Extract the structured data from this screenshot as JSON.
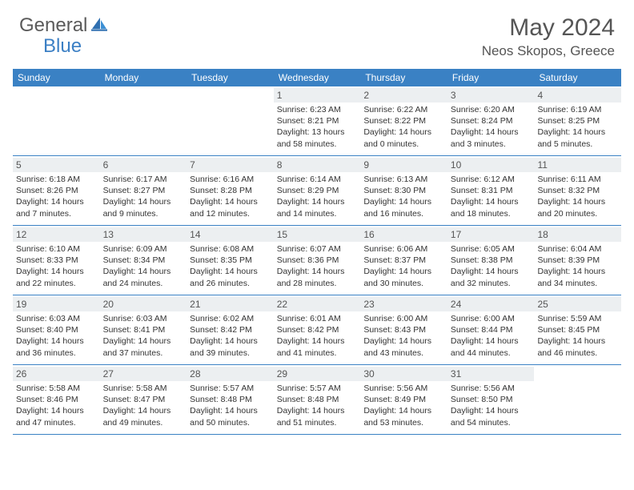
{
  "brand": {
    "part1": "General",
    "part2": "Blue"
  },
  "title": "May 2024",
  "location": "Neos Skopos, Greece",
  "colors": {
    "header_bg": "#3a81c4",
    "daynum_bg": "#eceff1",
    "text": "#333333",
    "brand_gray": "#5a5a5a",
    "brand_blue": "#3b7fc4"
  },
  "weekdays": [
    "Sunday",
    "Monday",
    "Tuesday",
    "Wednesday",
    "Thursday",
    "Friday",
    "Saturday"
  ],
  "weeks": [
    [
      {
        "n": "",
        "sr": "",
        "ss": "",
        "dl": ""
      },
      {
        "n": "",
        "sr": "",
        "ss": "",
        "dl": ""
      },
      {
        "n": "",
        "sr": "",
        "ss": "",
        "dl": ""
      },
      {
        "n": "1",
        "sr": "Sunrise: 6:23 AM",
        "ss": "Sunset: 8:21 PM",
        "dl": "Daylight: 13 hours and 58 minutes."
      },
      {
        "n": "2",
        "sr": "Sunrise: 6:22 AM",
        "ss": "Sunset: 8:22 PM",
        "dl": "Daylight: 14 hours and 0 minutes."
      },
      {
        "n": "3",
        "sr": "Sunrise: 6:20 AM",
        "ss": "Sunset: 8:24 PM",
        "dl": "Daylight: 14 hours and 3 minutes."
      },
      {
        "n": "4",
        "sr": "Sunrise: 6:19 AM",
        "ss": "Sunset: 8:25 PM",
        "dl": "Daylight: 14 hours and 5 minutes."
      }
    ],
    [
      {
        "n": "5",
        "sr": "Sunrise: 6:18 AM",
        "ss": "Sunset: 8:26 PM",
        "dl": "Daylight: 14 hours and 7 minutes."
      },
      {
        "n": "6",
        "sr": "Sunrise: 6:17 AM",
        "ss": "Sunset: 8:27 PM",
        "dl": "Daylight: 14 hours and 9 minutes."
      },
      {
        "n": "7",
        "sr": "Sunrise: 6:16 AM",
        "ss": "Sunset: 8:28 PM",
        "dl": "Daylight: 14 hours and 12 minutes."
      },
      {
        "n": "8",
        "sr": "Sunrise: 6:14 AM",
        "ss": "Sunset: 8:29 PM",
        "dl": "Daylight: 14 hours and 14 minutes."
      },
      {
        "n": "9",
        "sr": "Sunrise: 6:13 AM",
        "ss": "Sunset: 8:30 PM",
        "dl": "Daylight: 14 hours and 16 minutes."
      },
      {
        "n": "10",
        "sr": "Sunrise: 6:12 AM",
        "ss": "Sunset: 8:31 PM",
        "dl": "Daylight: 14 hours and 18 minutes."
      },
      {
        "n": "11",
        "sr": "Sunrise: 6:11 AM",
        "ss": "Sunset: 8:32 PM",
        "dl": "Daylight: 14 hours and 20 minutes."
      }
    ],
    [
      {
        "n": "12",
        "sr": "Sunrise: 6:10 AM",
        "ss": "Sunset: 8:33 PM",
        "dl": "Daylight: 14 hours and 22 minutes."
      },
      {
        "n": "13",
        "sr": "Sunrise: 6:09 AM",
        "ss": "Sunset: 8:34 PM",
        "dl": "Daylight: 14 hours and 24 minutes."
      },
      {
        "n": "14",
        "sr": "Sunrise: 6:08 AM",
        "ss": "Sunset: 8:35 PM",
        "dl": "Daylight: 14 hours and 26 minutes."
      },
      {
        "n": "15",
        "sr": "Sunrise: 6:07 AM",
        "ss": "Sunset: 8:36 PM",
        "dl": "Daylight: 14 hours and 28 minutes."
      },
      {
        "n": "16",
        "sr": "Sunrise: 6:06 AM",
        "ss": "Sunset: 8:37 PM",
        "dl": "Daylight: 14 hours and 30 minutes."
      },
      {
        "n": "17",
        "sr": "Sunrise: 6:05 AM",
        "ss": "Sunset: 8:38 PM",
        "dl": "Daylight: 14 hours and 32 minutes."
      },
      {
        "n": "18",
        "sr": "Sunrise: 6:04 AM",
        "ss": "Sunset: 8:39 PM",
        "dl": "Daylight: 14 hours and 34 minutes."
      }
    ],
    [
      {
        "n": "19",
        "sr": "Sunrise: 6:03 AM",
        "ss": "Sunset: 8:40 PM",
        "dl": "Daylight: 14 hours and 36 minutes."
      },
      {
        "n": "20",
        "sr": "Sunrise: 6:03 AM",
        "ss": "Sunset: 8:41 PM",
        "dl": "Daylight: 14 hours and 37 minutes."
      },
      {
        "n": "21",
        "sr": "Sunrise: 6:02 AM",
        "ss": "Sunset: 8:42 PM",
        "dl": "Daylight: 14 hours and 39 minutes."
      },
      {
        "n": "22",
        "sr": "Sunrise: 6:01 AM",
        "ss": "Sunset: 8:42 PM",
        "dl": "Daylight: 14 hours and 41 minutes."
      },
      {
        "n": "23",
        "sr": "Sunrise: 6:00 AM",
        "ss": "Sunset: 8:43 PM",
        "dl": "Daylight: 14 hours and 43 minutes."
      },
      {
        "n": "24",
        "sr": "Sunrise: 6:00 AM",
        "ss": "Sunset: 8:44 PM",
        "dl": "Daylight: 14 hours and 44 minutes."
      },
      {
        "n": "25",
        "sr": "Sunrise: 5:59 AM",
        "ss": "Sunset: 8:45 PM",
        "dl": "Daylight: 14 hours and 46 minutes."
      }
    ],
    [
      {
        "n": "26",
        "sr": "Sunrise: 5:58 AM",
        "ss": "Sunset: 8:46 PM",
        "dl": "Daylight: 14 hours and 47 minutes."
      },
      {
        "n": "27",
        "sr": "Sunrise: 5:58 AM",
        "ss": "Sunset: 8:47 PM",
        "dl": "Daylight: 14 hours and 49 minutes."
      },
      {
        "n": "28",
        "sr": "Sunrise: 5:57 AM",
        "ss": "Sunset: 8:48 PM",
        "dl": "Daylight: 14 hours and 50 minutes."
      },
      {
        "n": "29",
        "sr": "Sunrise: 5:57 AM",
        "ss": "Sunset: 8:48 PM",
        "dl": "Daylight: 14 hours and 51 minutes."
      },
      {
        "n": "30",
        "sr": "Sunrise: 5:56 AM",
        "ss": "Sunset: 8:49 PM",
        "dl": "Daylight: 14 hours and 53 minutes."
      },
      {
        "n": "31",
        "sr": "Sunrise: 5:56 AM",
        "ss": "Sunset: 8:50 PM",
        "dl": "Daylight: 14 hours and 54 minutes."
      },
      {
        "n": "",
        "sr": "",
        "ss": "",
        "dl": ""
      }
    ]
  ]
}
